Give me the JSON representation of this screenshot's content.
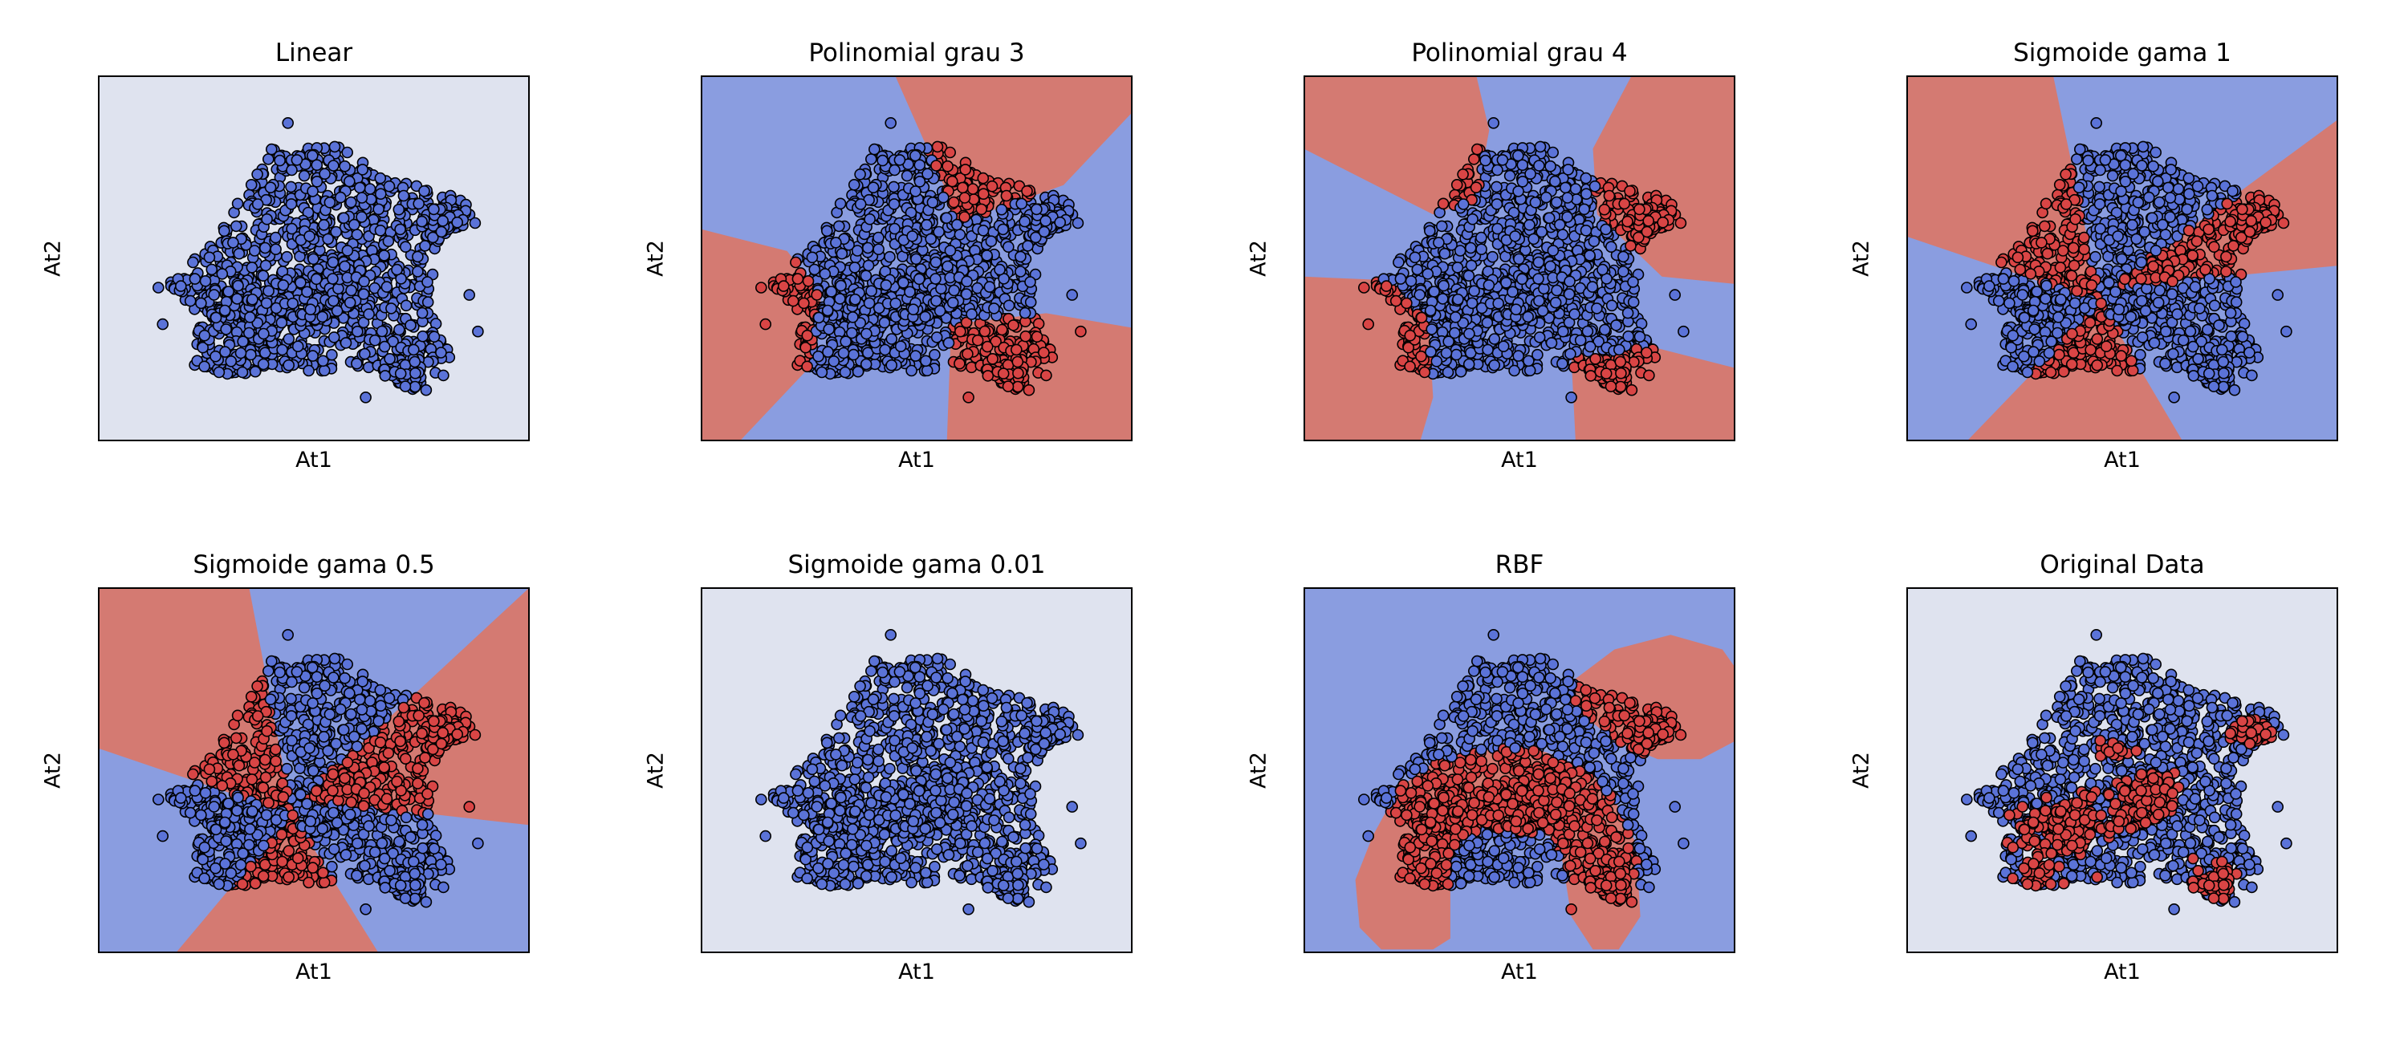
{
  "figure": {
    "colors": {
      "class_blue": "#5b73d8",
      "class_red": "#d94545",
      "region_blue": "#8a9de0",
      "region_red": "#d47a72",
      "region_none": "#dfe3ef",
      "marker_edge": "#000000"
    }
  },
  "chart_data": [
    {
      "type": "scatter",
      "title": "Linear",
      "xlabel": "At1",
      "ylabel": "At2",
      "ticks": "hidden",
      "background": "uniform",
      "regions": [],
      "point_rule": "all_blue"
    },
    {
      "type": "scatter",
      "title": "Polinomial grau 3",
      "xlabel": "At1",
      "ylabel": "At2",
      "ticks": "hidden",
      "background": "blue",
      "regions": [
        {
          "class": "red",
          "pts": [
            [
              0.45,
              0
            ],
            [
              1,
              0
            ],
            [
              1,
              0.1
            ],
            [
              0.84,
              0.3
            ],
            [
              0.6,
              0.4
            ]
          ]
        },
        {
          "class": "red",
          "pts": [
            [
              0,
              0.42
            ],
            [
              0.2,
              0.48
            ],
            [
              0.28,
              0.6
            ],
            [
              0.25,
              0.8
            ],
            [
              0.09,
              1
            ],
            [
              0,
              1
            ]
          ]
        },
        {
          "class": "red",
          "pts": [
            [
              0.58,
              0.68
            ],
            [
              0.8,
              0.65
            ],
            [
              1,
              0.69
            ],
            [
              1,
              1
            ],
            [
              0.57,
              1
            ]
          ]
        }
      ],
      "point_rule": "predicted"
    },
    {
      "type": "scatter",
      "title": "Polinomial grau 4",
      "xlabel": "At1",
      "ylabel": "At2",
      "ticks": "hidden",
      "background": "blue",
      "regions": [
        {
          "class": "red",
          "pts": [
            [
              0,
              0
            ],
            [
              0.4,
              0
            ],
            [
              0.43,
              0.15
            ],
            [
              0.4,
              0.34
            ],
            [
              0.3,
              0.38
            ],
            [
              0.1,
              0.26
            ],
            [
              0,
              0.2
            ]
          ]
        },
        {
          "class": "red",
          "pts": [
            [
              0.76,
              0
            ],
            [
              1,
              0
            ],
            [
              1,
              0.57
            ],
            [
              0.83,
              0.55
            ],
            [
              0.68,
              0.38
            ],
            [
              0.67,
              0.2
            ]
          ]
        },
        {
          "class": "red",
          "pts": [
            [
              0,
              0.55
            ],
            [
              0.2,
              0.56
            ],
            [
              0.29,
              0.68
            ],
            [
              0.3,
              0.88
            ],
            [
              0.27,
              1
            ],
            [
              0,
              1
            ]
          ]
        },
        {
          "class": "red",
          "pts": [
            [
              0.62,
              0.77
            ],
            [
              0.8,
              0.74
            ],
            [
              1,
              0.8
            ],
            [
              1,
              1
            ],
            [
              0.63,
              1
            ]
          ]
        }
      ],
      "point_rule": "predicted"
    },
    {
      "type": "scatter",
      "title": "Sigmoide gama 1",
      "xlabel": "At1",
      "ylabel": "At2",
      "ticks": "hidden",
      "background": "blue",
      "regions": [
        {
          "class": "red",
          "pts": [
            [
              0,
              0
            ],
            [
              0.34,
              0
            ],
            [
              0.45,
              0.62
            ],
            [
              0,
              0.44
            ]
          ]
        },
        {
          "class": "red",
          "pts": [
            [
              1,
              0.12
            ],
            [
              0.47,
              0.58
            ],
            [
              1,
              0.52
            ]
          ]
        },
        {
          "class": "red",
          "pts": [
            [
              0.45,
              0.62
            ],
            [
              0.64,
              1
            ],
            [
              0.14,
              1
            ]
          ]
        }
      ],
      "point_rule": "predicted"
    },
    {
      "type": "scatter",
      "title": "Sigmoide gama 0.5",
      "xlabel": "At1",
      "ylabel": "At2",
      "ticks": "hidden",
      "background": "blue",
      "regions": [
        {
          "class": "red",
          "pts": [
            [
              0,
              0
            ],
            [
              0.35,
              0
            ],
            [
              0.45,
              0.62
            ],
            [
              0,
              0.44
            ]
          ]
        },
        {
          "class": "red",
          "pts": [
            [
              1,
              0
            ],
            [
              0.47,
              0.58
            ],
            [
              1,
              0.65
            ]
          ]
        },
        {
          "class": "red",
          "pts": [
            [
              0.45,
              0.62
            ],
            [
              0.65,
              1
            ],
            [
              0.18,
              1
            ]
          ]
        }
      ],
      "point_rule": "predicted"
    },
    {
      "type": "scatter",
      "title": "Sigmoide gama 0.01",
      "xlabel": "At1",
      "ylabel": "At2",
      "ticks": "hidden",
      "background": "uniform",
      "regions": [],
      "point_rule": "all_blue"
    },
    {
      "type": "scatter",
      "title": "RBF",
      "xlabel": "At1",
      "ylabel": "At2",
      "ticks": "hidden",
      "background": "blue",
      "regions": [
        {
          "class": "red",
          "pts": [
            [
              0.63,
              0.25
            ],
            [
              0.72,
              0.17
            ],
            [
              0.85,
              0.13
            ],
            [
              0.97,
              0.17
            ],
            [
              1,
              0.22
            ],
            [
              1,
              0.42
            ],
            [
              0.92,
              0.47
            ],
            [
              0.82,
              0.47
            ],
            [
              0.72,
              0.42
            ],
            [
              0.63,
              0.33
            ]
          ]
        },
        {
          "class": "red",
          "pts": [
            [
              0.22,
              0.55
            ],
            [
              0.3,
              0.48
            ],
            [
              0.38,
              0.45
            ],
            [
              0.47,
              0.44
            ],
            [
              0.56,
              0.45
            ],
            [
              0.66,
              0.5
            ],
            [
              0.72,
              0.58
            ],
            [
              0.77,
              0.7
            ],
            [
              0.78,
              0.9
            ],
            [
              0.73,
              0.99
            ],
            [
              0.67,
              0.99
            ],
            [
              0.62,
              0.9
            ],
            [
              0.6,
              0.75
            ],
            [
              0.57,
              0.68
            ],
            [
              0.45,
              0.66
            ],
            [
              0.36,
              0.68
            ],
            [
              0.34,
              0.8
            ],
            [
              0.34,
              0.96
            ],
            [
              0.3,
              0.99
            ],
            [
              0.18,
              0.99
            ],
            [
              0.13,
              0.93
            ],
            [
              0.12,
              0.8
            ],
            [
              0.16,
              0.68
            ]
          ]
        }
      ],
      "point_rule": "predicted"
    },
    {
      "type": "scatter",
      "title": "Original Data",
      "xlabel": "At1",
      "ylabel": "At2",
      "ticks": "hidden",
      "background": "uniform",
      "regions": [],
      "point_rule": "original"
    }
  ]
}
